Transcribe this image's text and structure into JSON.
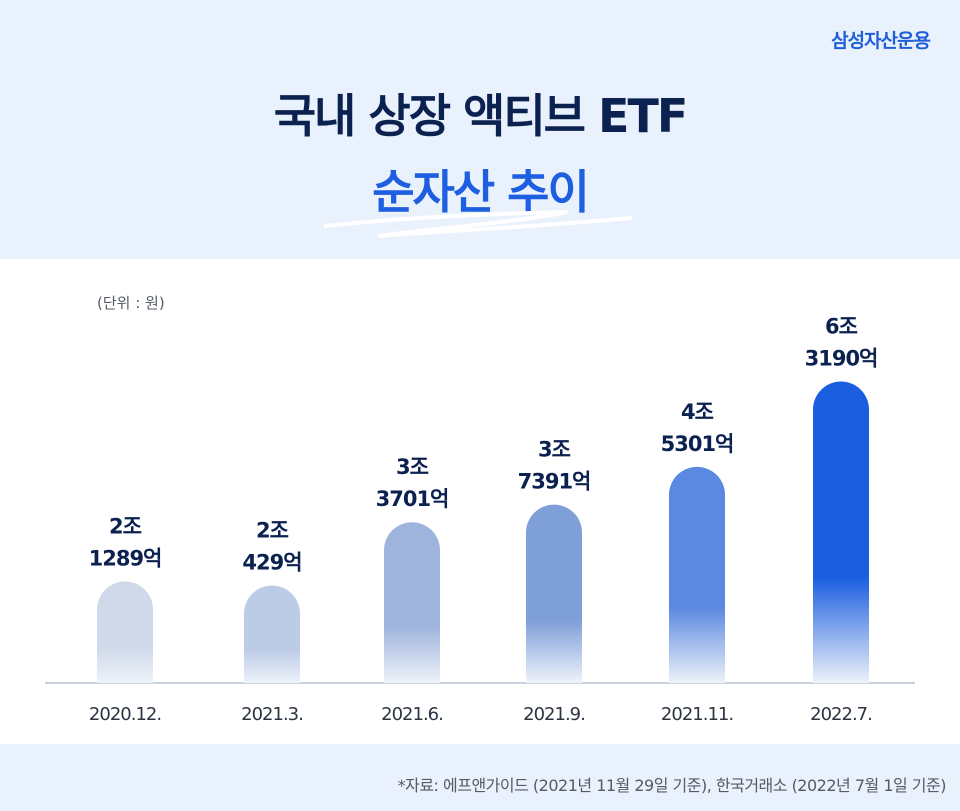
{
  "brand": "삼성자산운용",
  "title": {
    "line1": "국내 상장 액티브 ETF",
    "line2": "순자산 추이"
  },
  "unit_label": "(단위 : 원)",
  "source_note": "*자료: 에프앤가이드 (2021년 11월 29일 기준), 한국거래소 (2022년 7월 1일 기준)",
  "colors": {
    "title_dark": "#0b2150",
    "title_accent": "#1d5fe0",
    "brand": "#1e5fd9",
    "label_dark": "#0b2150"
  },
  "chart_data": {
    "type": "bar",
    "categories": [
      "2020.12.",
      "2021.3.",
      "2021.6.",
      "2021.9.",
      "2021.11.",
      "2022.7."
    ],
    "values": [
      21289,
      20429,
      33701,
      37391,
      45301,
      63190
    ],
    "value_unit": "억원",
    "data_labels": [
      [
        "2조",
        "1289억"
      ],
      [
        "2조",
        "429억"
      ],
      [
        "3조",
        "3701억"
      ],
      [
        "3조",
        "7391억"
      ],
      [
        "4조",
        "5301억"
      ],
      [
        "6조",
        "3190억"
      ]
    ],
    "bar_colors": [
      "#cfd9ea",
      "#bccbe6",
      "#9fb4dd",
      "#7f9fd9",
      "#5b88e0",
      "#1b5ee0"
    ],
    "ylim": [
      0,
      70000
    ],
    "xlabel": "",
    "ylabel": "",
    "grid": false,
    "legend": "none"
  }
}
